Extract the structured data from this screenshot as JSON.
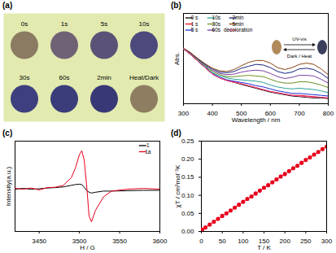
{
  "chart_data": [
    {
      "type": "swatch",
      "title": "(a)",
      "categories": [
        "0s",
        "1s",
        "5s",
        "10s",
        "30s",
        "60s",
        "2min",
        "Heat/Dark"
      ],
      "colors": [
        "#8b7b62",
        "#6f6275",
        "#5b5277",
        "#4c4a7d",
        "#3e3f7e",
        "#3b3c7a",
        "#383876",
        "#8e7d60"
      ]
    },
    {
      "type": "line",
      "title": "(b)",
      "xlabel": "Wavelength / nm",
      "ylabel": "Abs.",
      "x": [
        300,
        325,
        350,
        375,
        400,
        425,
        450,
        475,
        500,
        525,
        550,
        575,
        600,
        625,
        650,
        675,
        700,
        725,
        750,
        775,
        800
      ],
      "xlim": [
        300,
        800
      ],
      "xticks": [
        300,
        400,
        500,
        600,
        700,
        800
      ],
      "ylim": [
        0,
        1.4
      ],
      "yticks": [],
      "tick_labels": "x",
      "legend": "top-left",
      "annotations": [
        "UV-vis",
        "Dark / Heat"
      ],
      "series": [
        {
          "name": "0 s",
          "color": "#000000",
          "values": [
            0.85,
            0.76,
            0.66,
            0.56,
            0.46,
            0.4,
            0.36,
            0.33,
            0.3,
            0.27,
            0.24,
            0.21,
            0.18,
            0.16,
            0.14,
            0.12,
            0.11,
            0.1,
            0.09,
            0.09,
            0.08
          ]
        },
        {
          "name": "1 s",
          "color": "#e8001c",
          "values": [
            0.85,
            0.76,
            0.66,
            0.56,
            0.46,
            0.4,
            0.36,
            0.34,
            0.31,
            0.28,
            0.25,
            0.22,
            0.19,
            0.17,
            0.15,
            0.13,
            0.13,
            0.12,
            0.11,
            0.1,
            0.09
          ]
        },
        {
          "name": "5 s",
          "color": "#1f2fd6",
          "values": [
            0.85,
            0.76,
            0.66,
            0.57,
            0.47,
            0.41,
            0.37,
            0.35,
            0.33,
            0.31,
            0.28,
            0.26,
            0.23,
            0.2,
            0.18,
            0.16,
            0.16,
            0.15,
            0.14,
            0.13,
            0.12
          ]
        },
        {
          "name": "10s",
          "color": "#2aa198",
          "values": [
            0.85,
            0.77,
            0.67,
            0.58,
            0.48,
            0.43,
            0.4,
            0.38,
            0.37,
            0.36,
            0.35,
            0.33,
            0.29,
            0.26,
            0.24,
            0.23,
            0.24,
            0.23,
            0.22,
            0.2,
            0.17
          ]
        },
        {
          "name": "30s",
          "color": "#6b8e23",
          "values": [
            0.85,
            0.77,
            0.68,
            0.59,
            0.5,
            0.45,
            0.42,
            0.42,
            0.43,
            0.44,
            0.43,
            0.42,
            0.38,
            0.34,
            0.32,
            0.32,
            0.34,
            0.34,
            0.32,
            0.29,
            0.25
          ]
        },
        {
          "name": "60s",
          "color": "#7b3fa0",
          "values": [
            0.86,
            0.78,
            0.69,
            0.6,
            0.52,
            0.47,
            0.45,
            0.46,
            0.49,
            0.51,
            0.52,
            0.51,
            0.47,
            0.42,
            0.39,
            0.41,
            0.44,
            0.44,
            0.43,
            0.38,
            0.32
          ]
        },
        {
          "name": "2min",
          "color": "#1a237e",
          "values": [
            0.86,
            0.79,
            0.69,
            0.61,
            0.54,
            0.49,
            0.48,
            0.5,
            0.55,
            0.58,
            0.61,
            0.6,
            0.56,
            0.5,
            0.47,
            0.49,
            0.54,
            0.55,
            0.53,
            0.47,
            0.39
          ]
        },
        {
          "name": "5min",
          "color": "#8b4513",
          "values": [
            0.86,
            0.79,
            0.7,
            0.62,
            0.55,
            0.51,
            0.5,
            0.53,
            0.59,
            0.64,
            0.67,
            0.67,
            0.63,
            0.56,
            0.53,
            0.56,
            0.61,
            0.63,
            0.61,
            0.54,
            0.45
          ]
        },
        {
          "name": "decoloration",
          "color": "#ff4f8b",
          "values": [
            0.85,
            0.76,
            0.66,
            0.56,
            0.46,
            0.4,
            0.36,
            0.33,
            0.31,
            0.28,
            0.25,
            0.22,
            0.19,
            0.17,
            0.15,
            0.13,
            0.12,
            0.11,
            0.1,
            0.1,
            0.09
          ]
        }
      ]
    },
    {
      "type": "line",
      "title": "(c)",
      "xlabel": "H / G",
      "ylabel": "Intensity(a.u.)",
      "x": [
        3420,
        3430,
        3440,
        3450,
        3460,
        3470,
        3480,
        3490,
        3495,
        3500,
        3503,
        3506,
        3509,
        3512,
        3515,
        3520,
        3530,
        3540,
        3560,
        3580,
        3600
      ],
      "xlim": [
        3420,
        3600
      ],
      "xticks": [
        3450,
        3500,
        3550,
        3600
      ],
      "ylim": [
        -1.1,
        1.25
      ],
      "yticks": [],
      "tick_labels": "x",
      "legend": "top-right",
      "series": [
        {
          "name": "1",
          "color": "#000000",
          "values": [
            0.0,
            0.02,
            0.0,
            0.01,
            0.03,
            0.04,
            0.06,
            0.1,
            0.12,
            0.13,
            0.12,
            0.05,
            -0.03,
            -0.08,
            -0.1,
            -0.08,
            -0.05,
            -0.05,
            -0.04,
            -0.03,
            -0.03
          ]
        },
        {
          "name": "1a",
          "color": "#e8001c",
          "values": [
            0.02,
            0.0,
            0.03,
            -0.02,
            0.04,
            0.05,
            0.1,
            0.3,
            0.55,
            0.9,
            1.0,
            0.75,
            0.1,
            -0.7,
            -0.85,
            -0.55,
            -0.2,
            -0.05,
            0.0,
            0.02,
            0.0
          ]
        }
      ]
    },
    {
      "type": "scatter",
      "title": "(d)",
      "xlabel": "T / K",
      "ylabel": "χT / cm³mol⁻¹K",
      "x": [
        2,
        10,
        20,
        30,
        40,
        50,
        60,
        70,
        80,
        90,
        100,
        110,
        120,
        130,
        140,
        150,
        160,
        170,
        180,
        190,
        200,
        210,
        220,
        230,
        240,
        250,
        260,
        270,
        280,
        290,
        300
      ],
      "values": [
        0.005,
        0.011,
        0.019,
        0.027,
        0.035,
        0.043,
        0.05,
        0.058,
        0.066,
        0.074,
        0.082,
        0.09,
        0.097,
        0.105,
        0.113,
        0.121,
        0.128,
        0.136,
        0.144,
        0.152,
        0.159,
        0.167,
        0.175,
        0.182,
        0.19,
        0.198,
        0.205,
        0.213,
        0.22,
        0.228,
        0.235
      ],
      "color": "#e8001c",
      "marker": "circle",
      "line_style": "solid",
      "xlim": [
        0,
        300
      ],
      "xticks": [
        0,
        50,
        100,
        150,
        200,
        250,
        300
      ],
      "ylim": [
        0,
        0.25
      ],
      "yticks": [
        {
          "value": 0,
          "label": "0.00"
        },
        {
          "value": 0.05,
          "label": "0.05"
        },
        {
          "value": 0.1,
          "label": "0.10"
        },
        {
          "value": 0.15,
          "label": "0.15"
        },
        {
          "value": 0.2,
          "label": "0.20"
        },
        {
          "value": 0.25,
          "label": "0.25"
        }
      ]
    }
  ]
}
